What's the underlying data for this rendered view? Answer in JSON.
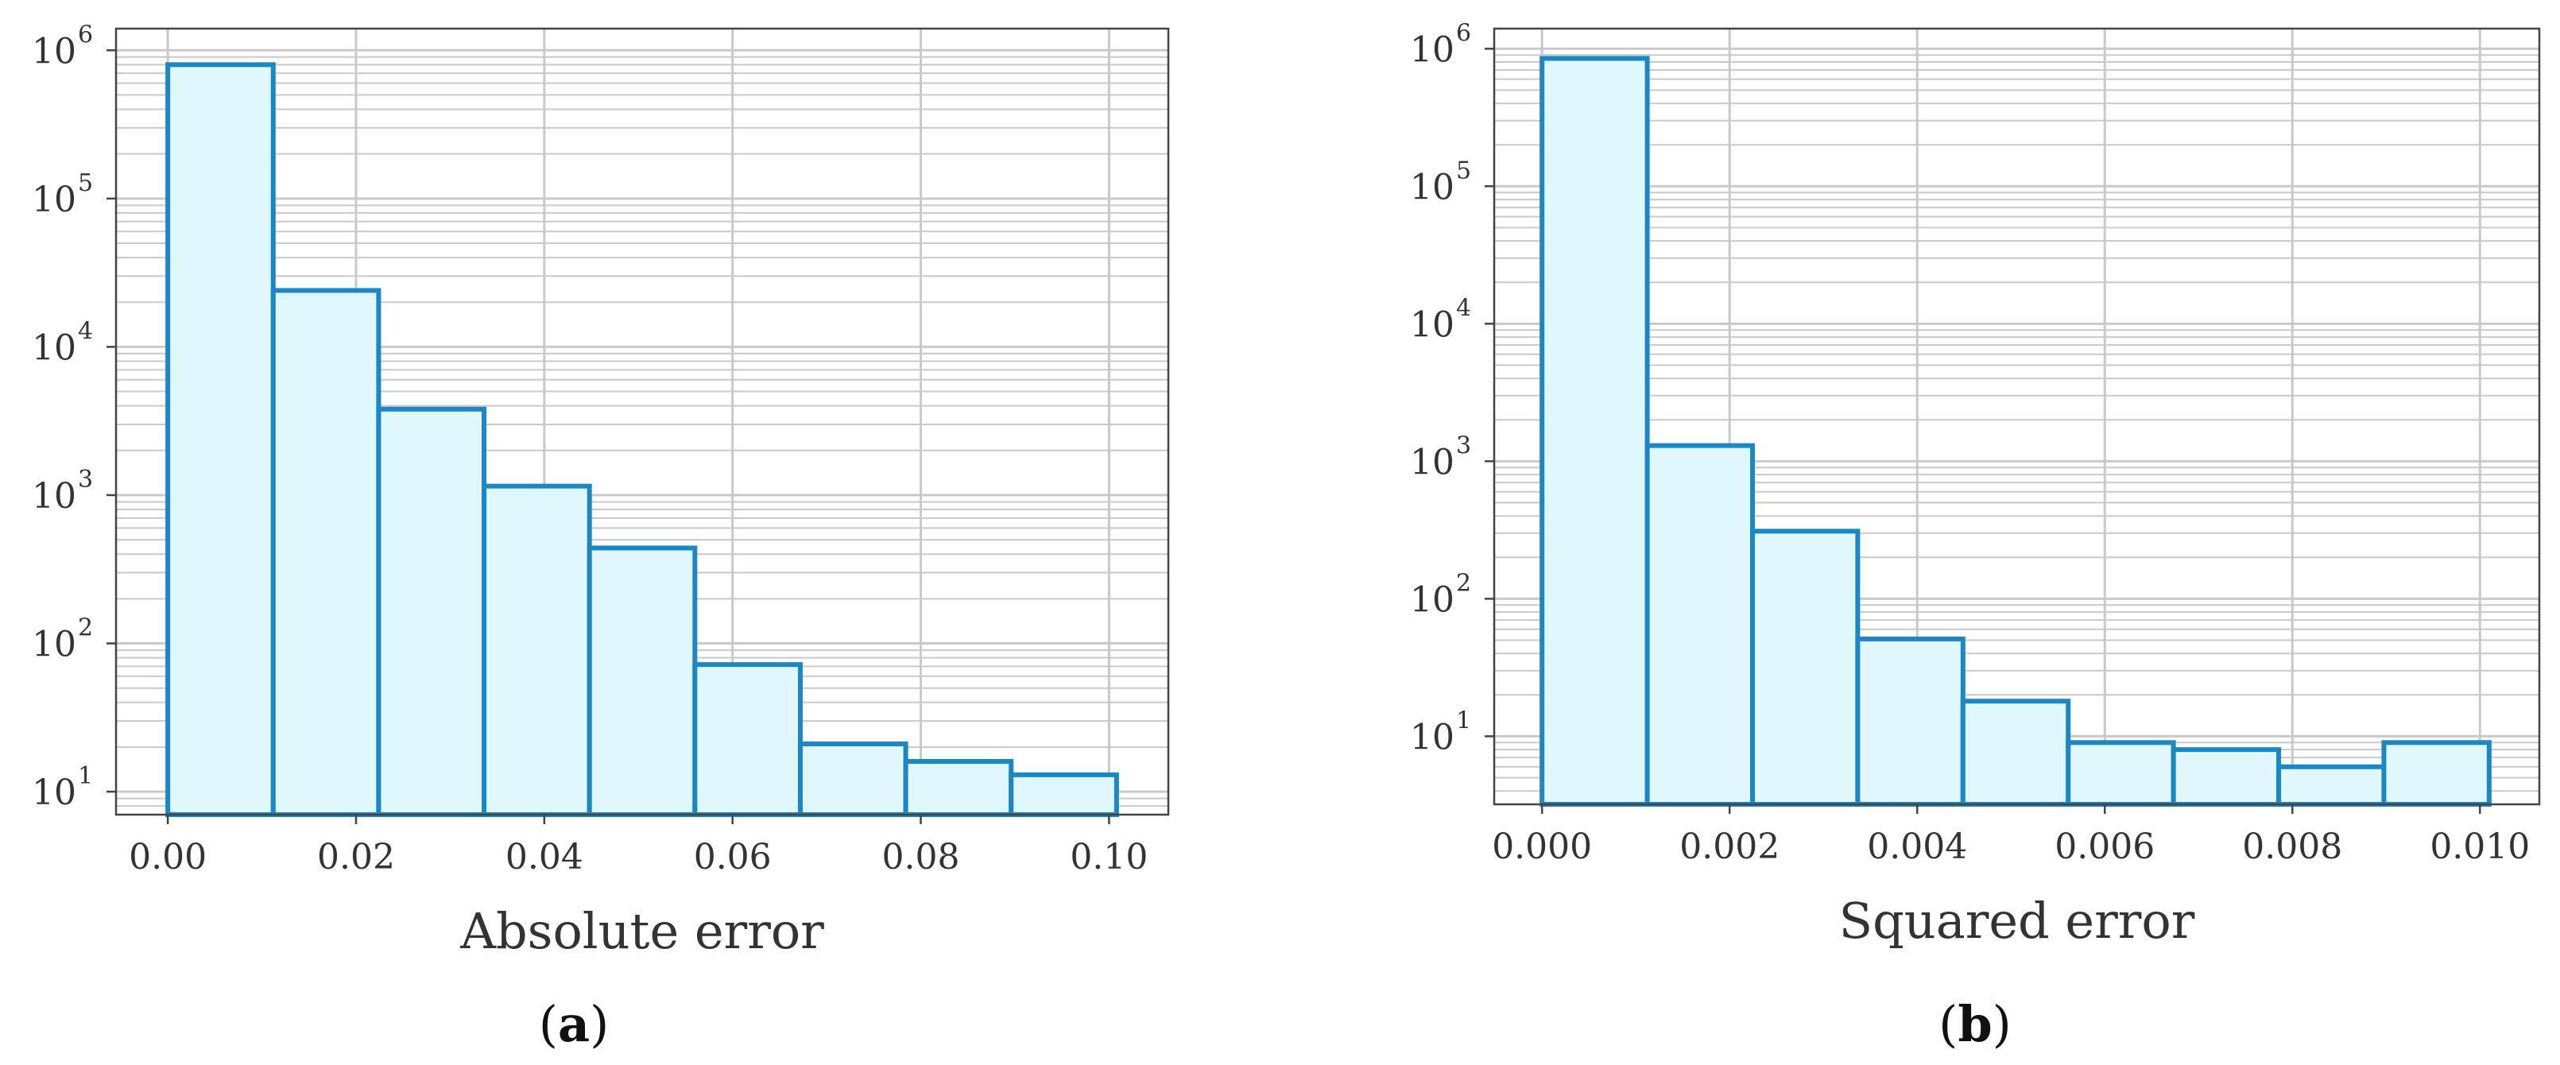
{
  "chart_data": [
    {
      "type": "bar",
      "panel": "a",
      "xlabel": "Absolute error",
      "ylabel": "",
      "yscale": "log",
      "grid": true,
      "bin_edges": [
        0.0,
        0.0112,
        0.0224,
        0.0336,
        0.0448,
        0.056,
        0.0672,
        0.0784,
        0.0896,
        0.1008
      ],
      "values": [
        800000,
        24000,
        3800,
        1150,
        440,
        72,
        21,
        16,
        13
      ],
      "xlim": [
        -0.0055,
        0.1063
      ],
      "ylim": [
        7,
        1400000
      ],
      "xticks": [
        0.0,
        0.02,
        0.04,
        0.06,
        0.08,
        0.1
      ],
      "xtick_labels": [
        "0.00",
        "0.02",
        "0.04",
        "0.06",
        "0.08",
        "0.10"
      ],
      "yticks": [
        10,
        100,
        1000,
        10000,
        100000,
        1000000
      ],
      "ytick_base": "10",
      "ytick_exponents": [
        "1",
        "2",
        "3",
        "4",
        "5",
        "6"
      ],
      "bar_fill": "#dff7fd",
      "bar_edge": "#1a87c6",
      "caption_open": "(",
      "caption_letter": "a",
      "caption_close": ")"
    },
    {
      "type": "bar",
      "panel": "b",
      "xlabel": "Squared error",
      "ylabel": "",
      "yscale": "log",
      "grid": true,
      "bin_edges": [
        0.0,
        0.001122,
        0.002244,
        0.003366,
        0.004488,
        0.00561,
        0.006732,
        0.007854,
        0.008976,
        0.010098
      ],
      "values": [
        850000,
        1300,
        310,
        51,
        18,
        9,
        8,
        6,
        9
      ],
      "xlim": [
        -0.00051,
        0.010633
      ],
      "ylim": [
        3.2,
        1400000
      ],
      "xticks": [
        0.0,
        0.002,
        0.004,
        0.006,
        0.008,
        0.01
      ],
      "xtick_labels": [
        "0.000",
        "0.002",
        "0.004",
        "0.006",
        "0.008",
        "0.010"
      ],
      "yticks": [
        10,
        100,
        1000,
        10000,
        100000,
        1000000
      ],
      "ytick_base": "10",
      "ytick_exponents": [
        "1",
        "2",
        "3",
        "4",
        "5",
        "6"
      ],
      "bar_fill": "#dff7fd",
      "bar_edge": "#1a87c6",
      "caption_open": "(",
      "caption_letter": "b",
      "caption_close": ")"
    }
  ],
  "colors": {
    "grid": "#c9c9c9",
    "axis_frame": "#444444",
    "text": "#333333"
  }
}
